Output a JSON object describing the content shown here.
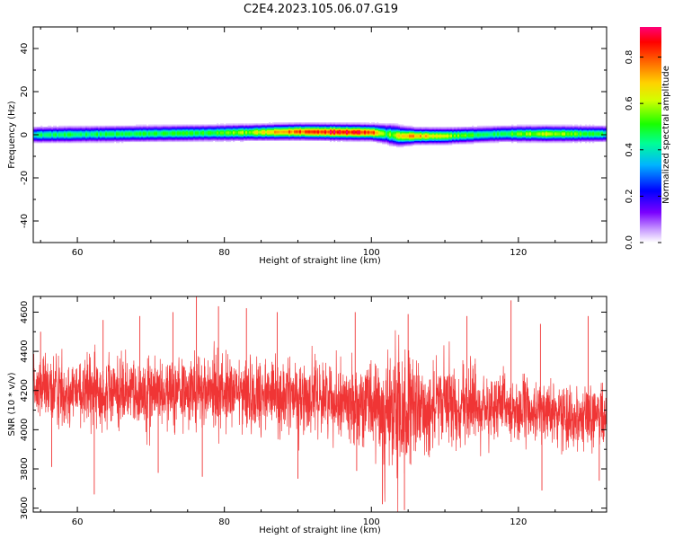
{
  "title": "C2E4.2023.105.06.07.G19",
  "chart_data": [
    {
      "type": "heatmap",
      "xlabel": "Height of straight line (km)",
      "ylabel": "Frequency (Hz)",
      "xlim": [
        54,
        132
      ],
      "ylim": [
        -50,
        50
      ],
      "xticks": [
        60,
        80,
        100,
        120
      ],
      "yticks": [
        -40,
        -20,
        0,
        20,
        40
      ],
      "colorbar": {
        "label": "Normalized spectral amplitude",
        "range": [
          0,
          0.93
        ],
        "ticks": [
          0.0,
          0.2,
          0.4,
          0.6,
          0.8
        ]
      },
      "band_center": [
        {
          "x": 54,
          "y": 0
        },
        {
          "x": 80,
          "y": 1.0
        },
        {
          "x": 90,
          "y": 1.5
        },
        {
          "x": 100,
          "y": 1.2
        },
        {
          "x": 102,
          "y": 0.5
        },
        {
          "x": 104,
          "y": -0.5
        },
        {
          "x": 110,
          "y": -0.5
        },
        {
          "x": 118,
          "y": 0.5
        },
        {
          "x": 132,
          "y": 0.5
        }
      ],
      "peak_amplitude": [
        {
          "x": 54,
          "y": 0.45
        },
        {
          "x": 78,
          "y": 0.5
        },
        {
          "x": 84,
          "y": 0.6
        },
        {
          "x": 90,
          "y": 0.8
        },
        {
          "x": 96,
          "y": 0.92
        },
        {
          "x": 100,
          "y": 0.85
        },
        {
          "x": 102,
          "y": 0.5
        },
        {
          "x": 105,
          "y": 0.75
        },
        {
          "x": 110,
          "y": 0.6
        },
        {
          "x": 116,
          "y": 0.45
        },
        {
          "x": 124,
          "y": 0.62
        },
        {
          "x": 132,
          "y": 0.45
        }
      ],
      "band_halfwidth": [
        {
          "x": 54,
          "y": 3
        },
        {
          "x": 100,
          "y": 3
        },
        {
          "x": 103,
          "y": 4
        },
        {
          "x": 106,
          "y": 3
        },
        {
          "x": 132,
          "y": 3
        }
      ]
    },
    {
      "type": "line",
      "xlabel": "Height of straight line (km)",
      "ylabel": "SNR (10 * v/v)",
      "xlim": [
        54,
        132
      ],
      "ylim": [
        3580,
        4680
      ],
      "xticks": [
        60,
        80,
        100,
        120
      ],
      "yticks": [
        3600,
        3800,
        4000,
        4200,
        4400,
        4600
      ],
      "color": "#f03535",
      "envelope": {
        "mean": [
          {
            "x": 54,
            "y": 4200
          },
          {
            "x": 80,
            "y": 4190
          },
          {
            "x": 95,
            "y": 4160
          },
          {
            "x": 100,
            "y": 4120
          },
          {
            "x": 103,
            "y": 4070
          },
          {
            "x": 105,
            "y": 4080
          },
          {
            "x": 110,
            "y": 4140
          },
          {
            "x": 120,
            "y": 4100
          },
          {
            "x": 132,
            "y": 4060
          }
        ],
        "spread": [
          {
            "x": 54,
            "y": 120
          },
          {
            "x": 99,
            "y": 130
          },
          {
            "x": 102,
            "y": 210
          },
          {
            "x": 104,
            "y": 260
          },
          {
            "x": 106,
            "y": 160
          },
          {
            "x": 120,
            "y": 110
          },
          {
            "x": 132,
            "y": 100
          }
        ]
      },
      "spikes": [
        {
          "x": 55,
          "y": 4500
        },
        {
          "x": 63.5,
          "y": 4560
        },
        {
          "x": 68.5,
          "y": 4580
        },
        {
          "x": 73,
          "y": 4600
        },
        {
          "x": 76.2,
          "y": 4680
        },
        {
          "x": 79.2,
          "y": 4630
        },
        {
          "x": 83,
          "y": 4620
        },
        {
          "x": 87.2,
          "y": 4600
        },
        {
          "x": 97.8,
          "y": 4600
        },
        {
          "x": 105,
          "y": 4590
        },
        {
          "x": 113,
          "y": 4580
        },
        {
          "x": 119,
          "y": 4660
        },
        {
          "x": 123,
          "y": 4540
        },
        {
          "x": 129.5,
          "y": 4580
        },
        {
          "x": 56.5,
          "y": 3810
        },
        {
          "x": 62.3,
          "y": 3670
        },
        {
          "x": 71,
          "y": 3780
        },
        {
          "x": 77,
          "y": 3760
        },
        {
          "x": 90,
          "y": 3750
        },
        {
          "x": 98,
          "y": 3790
        },
        {
          "x": 101.5,
          "y": 3620
        },
        {
          "x": 104.5,
          "y": 3590
        },
        {
          "x": 123.2,
          "y": 3690
        },
        {
          "x": 131,
          "y": 3740
        }
      ],
      "point_count": 3000
    }
  ]
}
